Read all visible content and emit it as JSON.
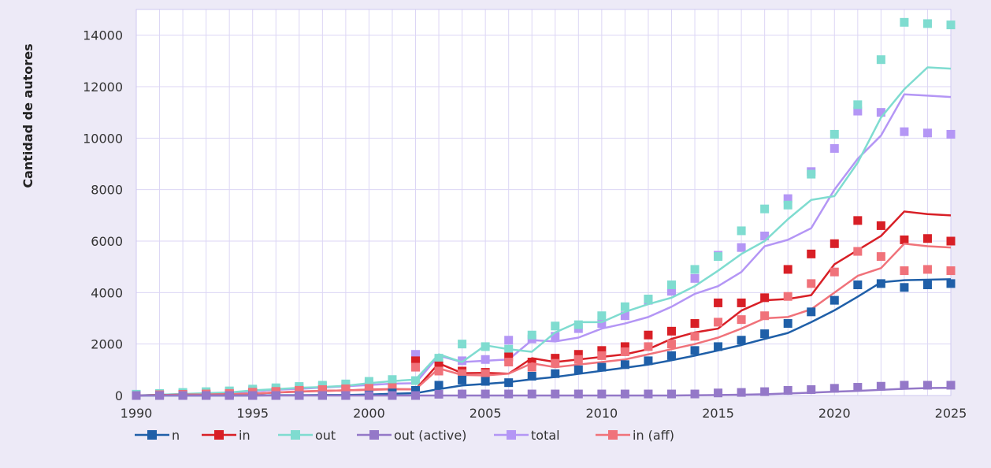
{
  "chart_data": {
    "type": "line",
    "xlabel": "",
    "ylabel": "Cantidad de autores",
    "xlim": [
      1990,
      2025
    ],
    "ylim": [
      0,
      15000
    ],
    "x_ticks": [
      "1990",
      "1995",
      "2000",
      "2005",
      "2010",
      "2015",
      "2020",
      "2025"
    ],
    "y_ticks": [
      "0",
      "2000",
      "4000",
      "6000",
      "8000",
      "10000",
      "12000",
      "14000"
    ],
    "grid": true,
    "legend_position": "bottom-left",
    "x": [
      1990,
      1991,
      1992,
      1993,
      1994,
      1995,
      1996,
      1997,
      1998,
      1999,
      2000,
      2001,
      2002,
      2003,
      2004,
      2005,
      2006,
      2007,
      2008,
      2009,
      2010,
      2011,
      2012,
      2013,
      2014,
      2015,
      2016,
      2017,
      2018,
      2019,
      2020,
      2021,
      2022,
      2023,
      2024,
      2025
    ],
    "series": [
      {
        "name": "n",
        "color": "#1f5fa8",
        "line": [
          0,
          0,
          0,
          0,
          0,
          0,
          10,
          10,
          20,
          20,
          40,
          70,
          90,
          250,
          390,
          450,
          520,
          630,
          720,
          840,
          960,
          1080,
          1200,
          1370,
          1550,
          1750,
          1960,
          2200,
          2430,
          2850,
          3310,
          3840,
          4400,
          4480,
          4500,
          4520
        ],
        "markers": [
          0,
          0,
          0,
          0,
          0,
          0,
          0,
          0,
          0,
          0,
          20,
          100,
          200,
          400,
          600,
          550,
          500,
          750,
          850,
          1000,
          1100,
          1200,
          1350,
          1550,
          1750,
          1900,
          2150,
          2400,
          2800,
          3250,
          3700,
          4300,
          4350,
          4200,
          4300,
          4350
        ]
      },
      {
        "name": "in",
        "color": "#d81f26",
        "line": [
          0,
          20,
          30,
          40,
          50,
          70,
          120,
          150,
          180,
          200,
          230,
          250,
          240,
          1250,
          870,
          880,
          850,
          1450,
          1300,
          1400,
          1500,
          1600,
          1800,
          2200,
          2450,
          2600,
          3300,
          3700,
          3750,
          3900,
          5100,
          5650,
          6200,
          7150,
          7050,
          7000
        ],
        "markers": [
          0,
          30,
          40,
          50,
          70,
          120,
          150,
          200,
          220,
          250,
          270,
          300,
          1350,
          1150,
          950,
          900,
          1500,
          1300,
          1450,
          1600,
          1750,
          1900,
          2350,
          2500,
          2800,
          3600,
          3600,
          3800,
          4900,
          5500,
          5900,
          6800,
          6600,
          6050,
          6100,
          6000
        ]
      },
      {
        "name": "out",
        "color": "#7fdcd0",
        "line": [
          0,
          30,
          60,
          90,
          120,
          200,
          250,
          300,
          330,
          380,
          480,
          560,
          620,
          1600,
          1300,
          1950,
          1800,
          1700,
          2450,
          2850,
          2850,
          3250,
          3550,
          3800,
          4250,
          4850,
          5500,
          6000,
          6850,
          7600,
          7750,
          9050,
          10800,
          11900,
          12750,
          12700
        ],
        "markers": [
          50,
          80,
          120,
          150,
          180,
          250,
          300,
          350,
          400,
          450,
          550,
          620,
          580,
          1450,
          2000,
          1900,
          1800,
          2350,
          2700,
          2750,
          3100,
          3450,
          3750,
          4300,
          4900,
          5400,
          6400,
          7250,
          7400,
          8600,
          10150,
          11300,
          13050,
          14500,
          14450,
          14400
        ]
      },
      {
        "name": "out (active)",
        "color": "#9478c8",
        "line": [
          0,
          0,
          0,
          0,
          0,
          0,
          0,
          0,
          0,
          0,
          0,
          0,
          0,
          0,
          0,
          0,
          0,
          0,
          0,
          0,
          0,
          0,
          0,
          0,
          10,
          20,
          30,
          50,
          80,
          110,
          150,
          180,
          220,
          260,
          290,
          300
        ],
        "markers": [
          0,
          0,
          0,
          0,
          0,
          0,
          0,
          0,
          0,
          0,
          0,
          0,
          0,
          50,
          60,
          60,
          60,
          60,
          60,
          60,
          60,
          60,
          60,
          60,
          60,
          100,
          120,
          150,
          200,
          230,
          280,
          320,
          360,
          400,
          400,
          400
        ]
      },
      {
        "name": "total",
        "color": "#b496f5",
        "line": [
          0,
          30,
          50,
          70,
          100,
          160,
          220,
          260,
          310,
          360,
          410,
          460,
          480,
          1550,
          1300,
          1350,
          1400,
          2150,
          2100,
          2250,
          2600,
          2800,
          3050,
          3450,
          3950,
          4250,
          4800,
          5800,
          6050,
          6500,
          8000,
          9200,
          10100,
          11700,
          11650,
          11600
        ],
        "markers": [
          30,
          50,
          80,
          100,
          150,
          200,
          250,
          300,
          350,
          400,
          450,
          500,
          1600,
          1400,
          1350,
          1400,
          2150,
          2200,
          2300,
          2600,
          2800,
          3100,
          3700,
          4050,
          4550,
          5450,
          5750,
          6200,
          7650,
          8700,
          9600,
          11050,
          11000,
          10250,
          10200,
          10150
        ]
      },
      {
        "name": "in (aff)",
        "color": "#f0727a",
        "line": [
          0,
          20,
          30,
          40,
          50,
          70,
          120,
          160,
          180,
          200,
          220,
          240,
          240,
          1050,
          800,
          780,
          850,
          1250,
          1100,
          1200,
          1300,
          1400,
          1600,
          1800,
          2000,
          2250,
          2600,
          3000,
          3050,
          3350,
          4000,
          4650,
          4950,
          5900,
          5800,
          5750
        ],
        "markers": [
          0,
          30,
          40,
          60,
          80,
          130,
          160,
          200,
          230,
          260,
          280,
          300,
          1100,
          950,
          850,
          850,
          1300,
          1100,
          1250,
          1400,
          1550,
          1700,
          1900,
          2000,
          2300,
          2850,
          2950,
          3100,
          3850,
          4350,
          4800,
          5600,
          5400,
          4850,
          4900,
          4850
        ]
      }
    ]
  }
}
